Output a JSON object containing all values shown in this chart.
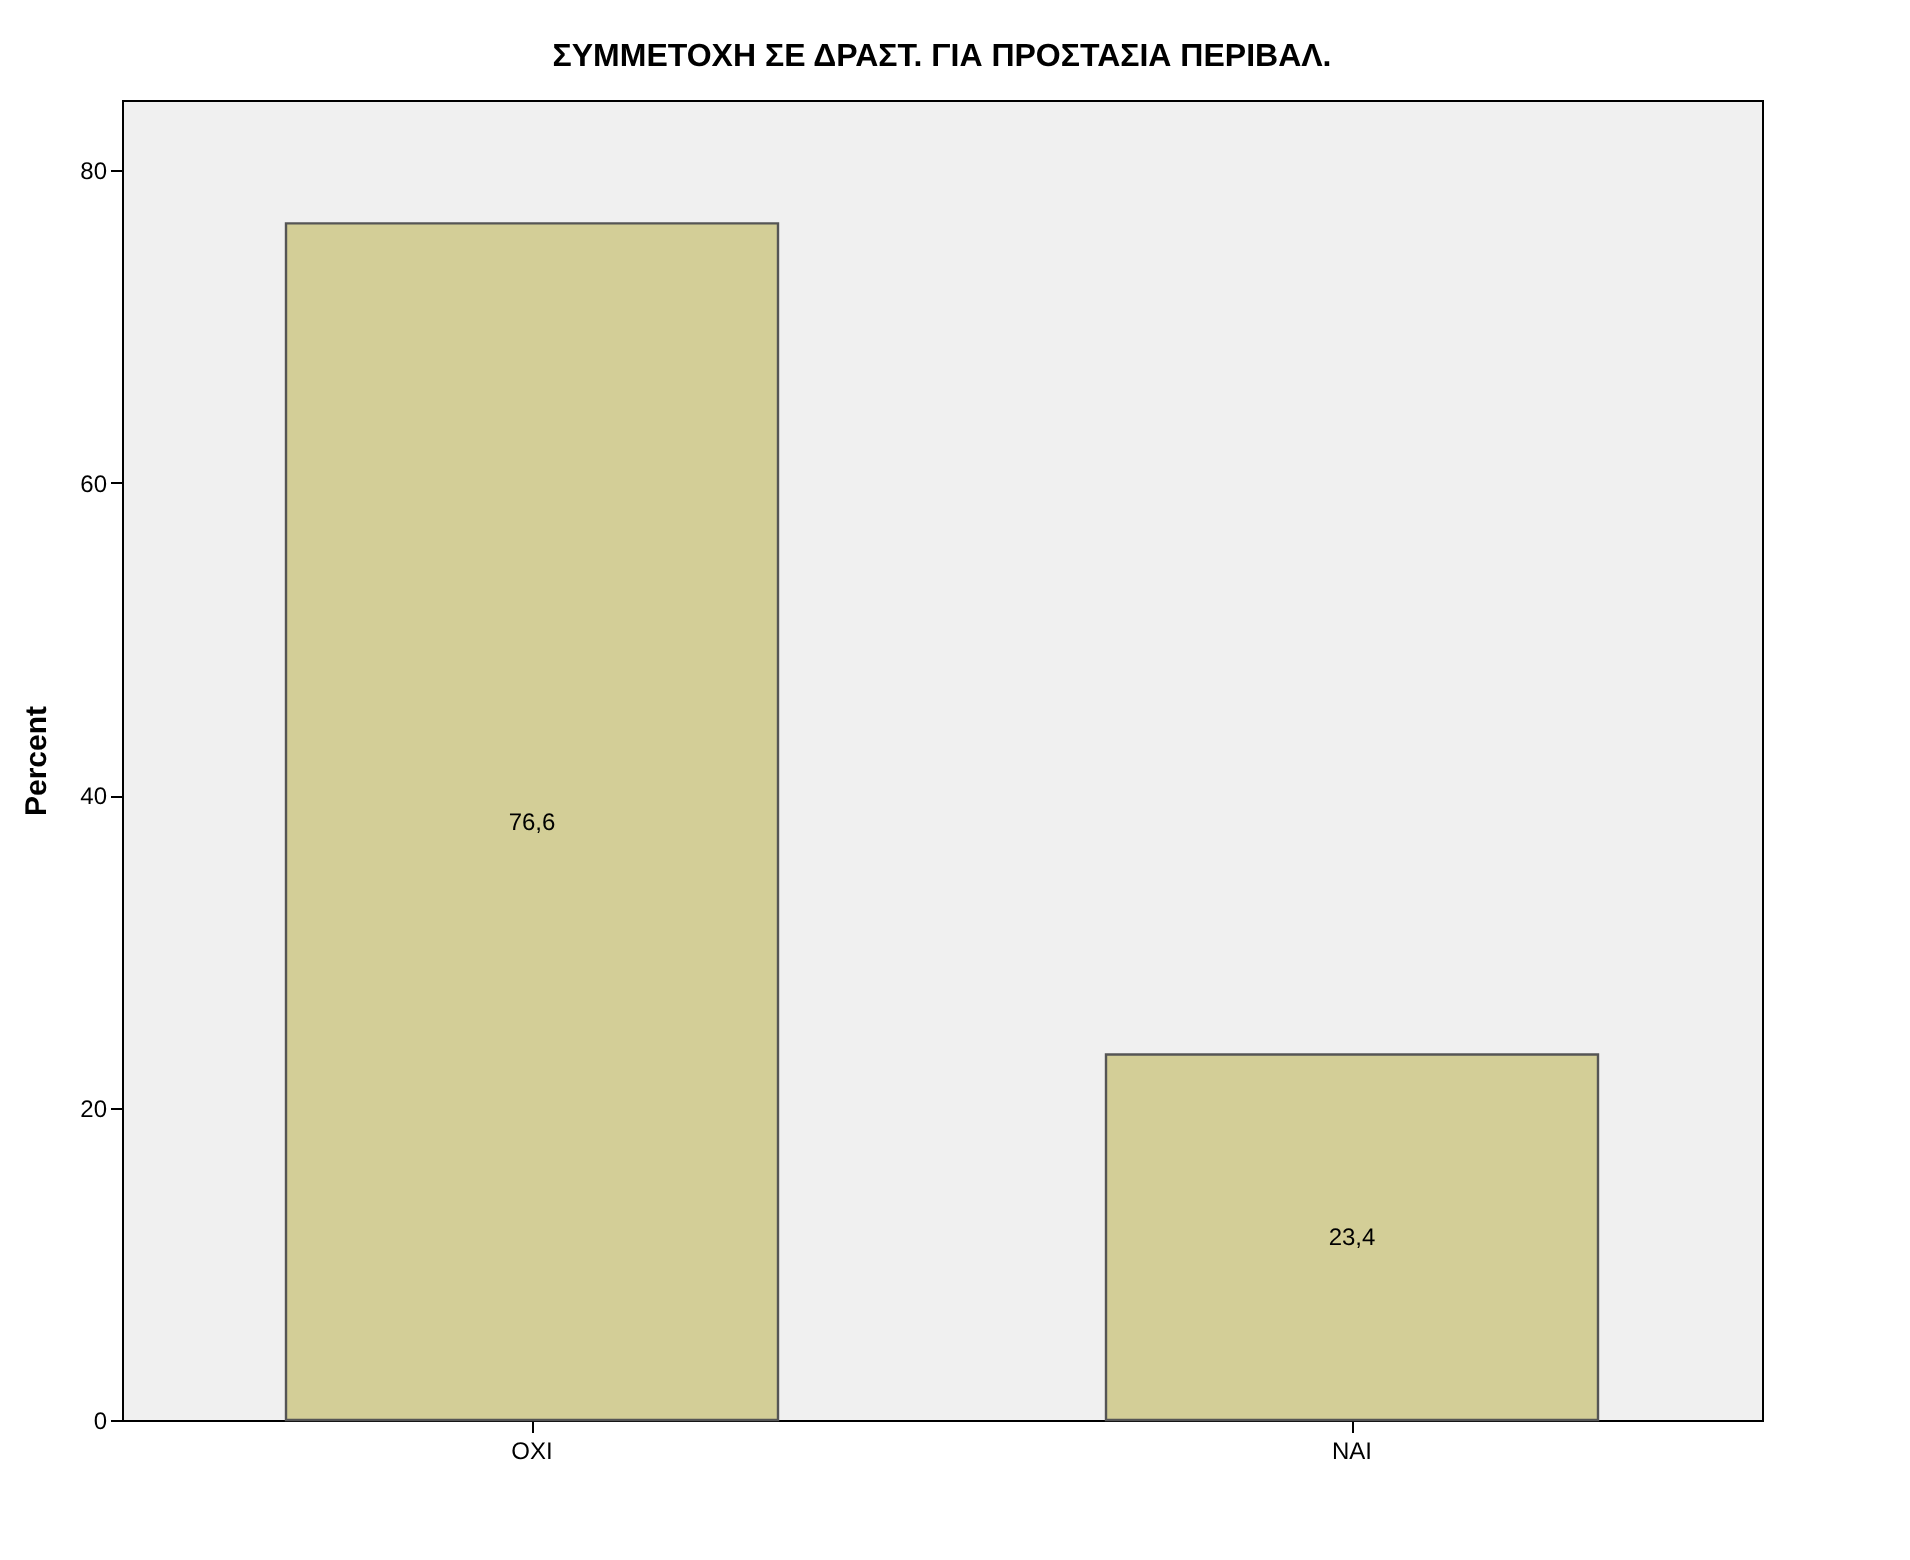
{
  "chart_data": {
    "type": "bar",
    "title": "ΣΥΜΜΕΤΟΧΗ ΣΕ ΔΡΑΣΤ. ΓΙΑ ΠΡΟΣΤΑΣΙΑ ΠΕΡΙΒΑΛ.",
    "ylabel": "Percent",
    "categories": [
      "ΟΧΙ",
      "ΝΑΙ"
    ],
    "values": [
      76.6,
      23.4
    ],
    "value_labels": [
      "76,6",
      "23,4"
    ],
    "color": "#d3ce97",
    "ylim": [
      0,
      84.5
    ],
    "yticks": [
      0,
      20,
      40,
      60,
      80
    ],
    "grid": false
  }
}
